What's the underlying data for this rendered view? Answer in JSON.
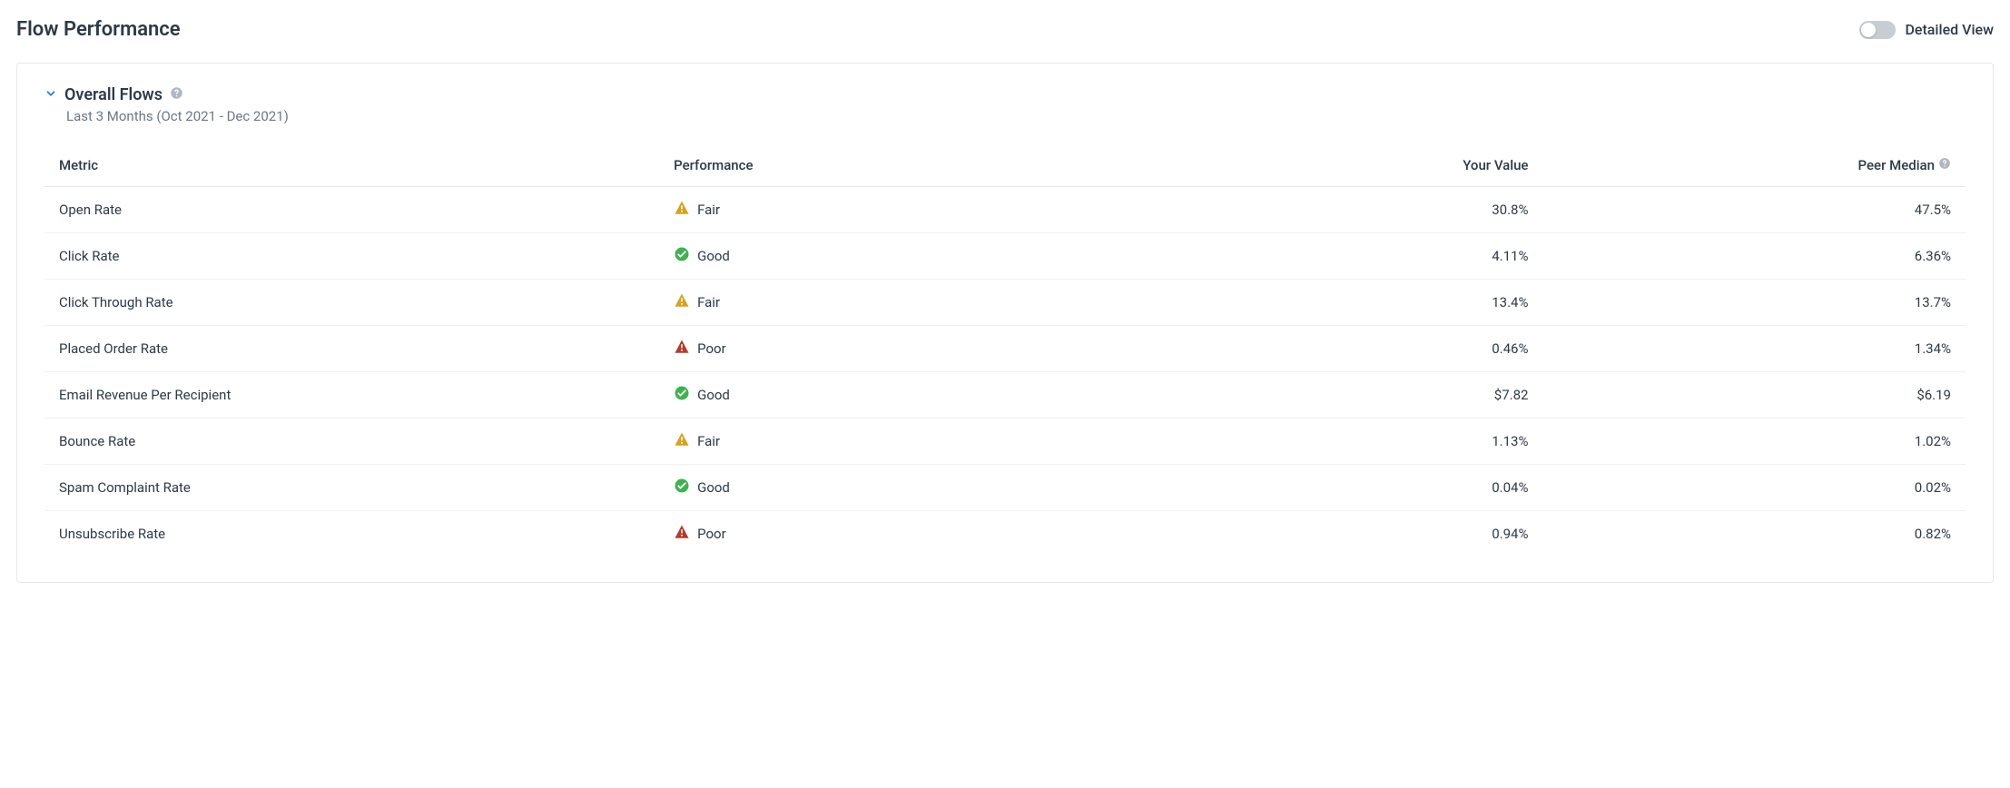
{
  "header": {
    "title": "Flow Performance",
    "toggle_label": "Detailed View"
  },
  "section": {
    "title": "Overall Flows",
    "subtitle": "Last 3 Months (Oct 2021 - Dec 2021)"
  },
  "colors": {
    "good": "#3fb24f",
    "fair": "#d6a21f",
    "poor": "#b43a2a",
    "icon_fg": "#ffffff",
    "help": "#b0b7bf",
    "accent": "#1c7fd6"
  },
  "table": {
    "columns": {
      "metric": "Metric",
      "performance": "Performance",
      "your_value": "Your Value",
      "peer_median": "Peer Median"
    },
    "rows": [
      {
        "metric": "Open Rate",
        "performance": "Fair",
        "your_value": "30.8%",
        "peer_median": "47.5%"
      },
      {
        "metric": "Click Rate",
        "performance": "Good",
        "your_value": "4.11%",
        "peer_median": "6.36%"
      },
      {
        "metric": "Click Through Rate",
        "performance": "Fair",
        "your_value": "13.4%",
        "peer_median": "13.7%"
      },
      {
        "metric": "Placed Order Rate",
        "performance": "Poor",
        "your_value": "0.46%",
        "peer_median": "1.34%"
      },
      {
        "metric": "Email Revenue Per Recipient",
        "performance": "Good",
        "your_value": "$7.82",
        "peer_median": "$6.19"
      },
      {
        "metric": "Bounce Rate",
        "performance": "Fair",
        "your_value": "1.13%",
        "peer_median": "1.02%"
      },
      {
        "metric": "Spam Complaint Rate",
        "performance": "Good",
        "your_value": "0.04%",
        "peer_median": "0.02%"
      },
      {
        "metric": "Unsubscribe Rate",
        "performance": "Poor",
        "your_value": "0.94%",
        "peer_median": "0.82%"
      }
    ]
  }
}
